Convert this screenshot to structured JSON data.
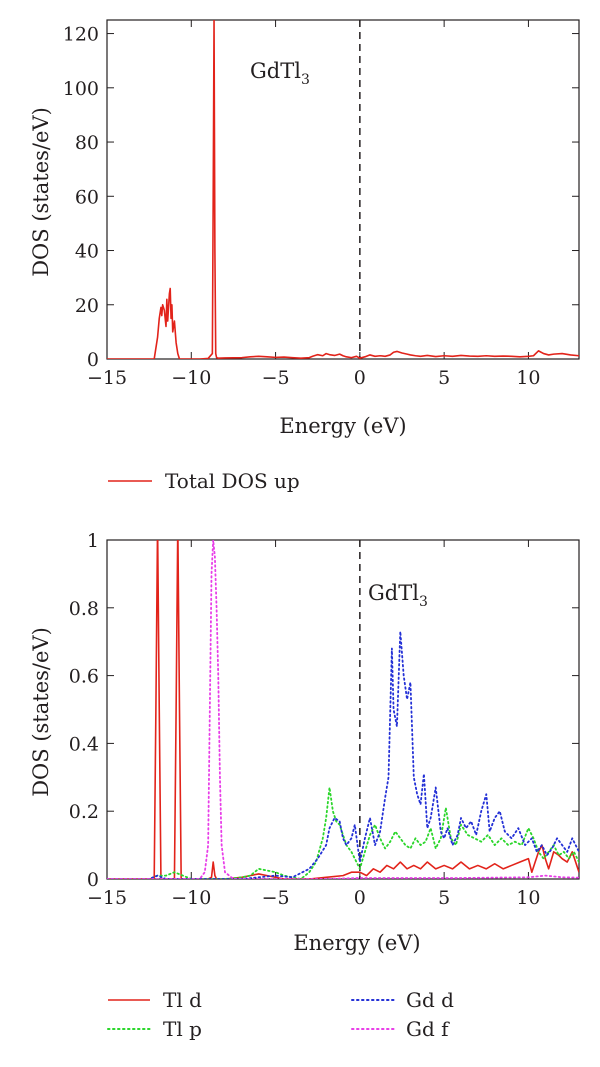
{
  "chart_data": [
    {
      "type": "line",
      "annotation": {
        "base": "GdTl",
        "sub": "3"
      },
      "xlabel": "Energy (eV)",
      "ylabel": "DOS (states/eV)",
      "xlim": [
        -15,
        13
      ],
      "ylim": [
        0,
        125
      ],
      "xticks": [
        -15,
        -10,
        -5,
        0,
        5,
        10
      ],
      "yticks": [
        0,
        20,
        40,
        60,
        80,
        100,
        120
      ],
      "fermi_level": 0,
      "legend_position": "below",
      "series": [
        {
          "name": "Total DOS up",
          "color": "#e2231a",
          "style": "solid",
          "x": [
            -15,
            -12.2,
            -12.0,
            -11.9,
            -11.8,
            -11.75,
            -11.7,
            -11.6,
            -11.5,
            -11.45,
            -11.4,
            -11.3,
            -11.25,
            -11.2,
            -11.15,
            -11.1,
            -11.0,
            -10.9,
            -10.8,
            -10.7,
            -10.5,
            -10.0,
            -9.5,
            -9.0,
            -8.75,
            -8.7,
            -8.65,
            -8.6,
            -8.55,
            -8.5,
            -8.4,
            -8.0,
            -7.0,
            -6.5,
            -6.0,
            -5.5,
            -5.0,
            -4.5,
            -4.0,
            -3.5,
            -3.0,
            -2.8,
            -2.5,
            -2.2,
            -2.0,
            -1.8,
            -1.5,
            -1.2,
            -1.0,
            -0.8,
            -0.5,
            -0.2,
            0.0,
            0.3,
            0.6,
            0.9,
            1.2,
            1.5,
            1.8,
            2.0,
            2.2,
            2.5,
            2.8,
            3.0,
            3.3,
            3.6,
            4.0,
            4.5,
            5.0,
            5.5,
            6.0,
            6.5,
            7.0,
            7.5,
            8.0,
            8.5,
            9.0,
            9.5,
            10.0,
            10.3,
            10.6,
            10.9,
            11.2,
            11.5,
            12.0,
            12.5,
            13.0
          ],
          "y": [
            0,
            0,
            8,
            15,
            19,
            16,
            20,
            18,
            12,
            22,
            14,
            24,
            26,
            15,
            20,
            10,
            14,
            6,
            2,
            0,
            0,
            0,
            0,
            0.2,
            2,
            60,
            125,
            40,
            2,
            0.5,
            0.3,
            0.4,
            0.5,
            0.8,
            1.0,
            0.8,
            0.6,
            0.7,
            0.5,
            0.3,
            0.5,
            1.0,
            1.6,
            1.2,
            2.0,
            1.6,
            1.3,
            1.8,
            1.2,
            0.8,
            0.5,
            1.0,
            0.3,
            0.8,
            1.5,
            1.0,
            1.2,
            1.0,
            1.5,
            2.5,
            2.8,
            2.2,
            1.8,
            1.5,
            1.2,
            1.0,
            1.3,
            0.9,
            1.2,
            1.0,
            1.3,
            1.1,
            1.0,
            1.2,
            1.0,
            1.1,
            1.0,
            0.8,
            1.0,
            1.2,
            3.0,
            2.0,
            1.5,
            1.8,
            2.0,
            1.5,
            1.2
          ]
        }
      ]
    },
    {
      "type": "line",
      "annotation": {
        "base": "GdTl",
        "sub": "3"
      },
      "xlabel": "Energy (eV)",
      "ylabel": "DOS (states/eV)",
      "xlim": [
        -15,
        13
      ],
      "ylim": [
        0,
        1
      ],
      "xticks": [
        -15,
        -10,
        -5,
        0,
        5,
        10
      ],
      "yticks": [
        0,
        0.2,
        0.4,
        0.6,
        0.8,
        1
      ],
      "fermi_level": 0,
      "legend_position": "below",
      "series": [
        {
          "name": "Tl d",
          "color": "#e2231a",
          "style": "solid",
          "x": [
            -15,
            -12.2,
            -12.1,
            -12.0,
            -11.9,
            -11.8,
            -11.0,
            -10.9,
            -10.8,
            -10.7,
            -10.6,
            -9.0,
            -8.8,
            -8.7,
            -8.6,
            -8.5,
            -8.0,
            -7.0,
            -6.5,
            -6.0,
            -5.5,
            -5.0,
            -4.5,
            -3.0,
            -2.0,
            -1.0,
            -0.5,
            0.0,
            0.4,
            0.8,
            1.2,
            1.6,
            2.0,
            2.4,
            2.8,
            3.2,
            3.6,
            4.0,
            4.5,
            5.0,
            5.5,
            6.0,
            6.5,
            7.0,
            7.5,
            8.0,
            8.5,
            9.0,
            9.5,
            10.0,
            10.2,
            10.4,
            10.6,
            10.8,
            11.0,
            11.2,
            11.5,
            11.8,
            12.0,
            12.3,
            12.6,
            13.0
          ],
          "y": [
            0,
            0,
            0.5,
            1.05,
            0.5,
            0,
            0,
            0.5,
            1.05,
            0.5,
            0,
            0,
            0.005,
            0.05,
            0.01,
            0,
            0,
            0.005,
            0.01,
            0.015,
            0.01,
            0.005,
            0,
            0,
            0.005,
            0.01,
            0.02,
            0.02,
            0.01,
            0.03,
            0.02,
            0.04,
            0.03,
            0.05,
            0.03,
            0.04,
            0.03,
            0.05,
            0.03,
            0.04,
            0.03,
            0.05,
            0.03,
            0.04,
            0.03,
            0.045,
            0.03,
            0.04,
            0.05,
            0.06,
            0.02,
            0.05,
            0.08,
            0.1,
            0.06,
            0.03,
            0.08,
            0.07,
            0.06,
            0.05,
            0.08,
            0.02
          ]
        },
        {
          "name": "Tl p",
          "color": "#2bd62b",
          "style": "dotted",
          "x": [
            -15,
            -12.5,
            -12.0,
            -11.5,
            -11.0,
            -10.0,
            -9.0,
            -8.0,
            -7.0,
            -6.5,
            -6.0,
            -5.5,
            -5.0,
            -4.5,
            -4.0,
            -3.5,
            -3.0,
            -2.6,
            -2.2,
            -2.0,
            -1.8,
            -1.6,
            -1.4,
            -1.2,
            -1.0,
            -0.8,
            -0.5,
            -0.2,
            0.0,
            0.3,
            0.6,
            0.9,
            1.2,
            1.5,
            1.8,
            2.1,
            2.4,
            2.7,
            3.0,
            3.3,
            3.6,
            3.9,
            4.2,
            4.5,
            4.8,
            5.1,
            5.4,
            5.7,
            6.0,
            6.4,
            6.8,
            7.2,
            7.6,
            8.0,
            8.4,
            8.8,
            9.2,
            9.6,
            10.0,
            10.3,
            10.6,
            10.9,
            11.2,
            11.5,
            11.8,
            12.1,
            12.4,
            12.7,
            13.0
          ],
          "y": [
            0,
            0,
            0.01,
            0.01,
            0.02,
            0,
            0,
            0,
            0.005,
            0.01,
            0.03,
            0.025,
            0.02,
            0.01,
            0.005,
            0,
            0.02,
            0.05,
            0.12,
            0.18,
            0.27,
            0.2,
            0.17,
            0.16,
            0.13,
            0.1,
            0.08,
            0.05,
            0.03,
            0.08,
            0.13,
            0.16,
            0.12,
            0.09,
            0.11,
            0.14,
            0.12,
            0.1,
            0.09,
            0.12,
            0.1,
            0.11,
            0.15,
            0.09,
            0.12,
            0.21,
            0.12,
            0.1,
            0.16,
            0.13,
            0.12,
            0.11,
            0.13,
            0.1,
            0.12,
            0.1,
            0.11,
            0.1,
            0.15,
            0.12,
            0.08,
            0.06,
            0.08,
            0.1,
            0.07,
            0.08,
            0.06,
            0.08,
            0.05
          ]
        },
        {
          "name": "Gd d",
          "color": "#2330d6",
          "style": "dotted",
          "x": [
            -15,
            -12.5,
            -12.0,
            -11.5,
            -11.0,
            -10.0,
            -9.0,
            -8.0,
            -7.0,
            -6.0,
            -5.0,
            -4.0,
            -3.0,
            -2.5,
            -2.0,
            -1.8,
            -1.5,
            -1.2,
            -1.0,
            -0.8,
            -0.5,
            -0.3,
            0.0,
            0.3,
            0.6,
            0.9,
            1.2,
            1.5,
            1.7,
            1.9,
            2.0,
            2.2,
            2.4,
            2.6,
            2.8,
            3.0,
            3.2,
            3.4,
            3.6,
            3.8,
            4.0,
            4.2,
            4.5,
            4.8,
            5.0,
            5.2,
            5.5,
            5.8,
            6.0,
            6.3,
            6.6,
            6.9,
            7.2,
            7.5,
            7.7,
            8.0,
            8.3,
            8.6,
            9.0,
            9.4,
            9.8,
            10.2,
            10.5,
            10.8,
            11.1,
            11.4,
            11.7,
            12.0,
            12.3,
            12.6,
            13.0
          ],
          "y": [
            0,
            0,
            0.01,
            0,
            0,
            0,
            0,
            0,
            0,
            0.005,
            0.01,
            0.005,
            0.03,
            0.06,
            0.1,
            0.15,
            0.18,
            0.17,
            0.12,
            0.1,
            0.12,
            0.16,
            0.05,
            0.12,
            0.18,
            0.1,
            0.14,
            0.24,
            0.3,
            0.68,
            0.5,
            0.45,
            0.73,
            0.6,
            0.53,
            0.58,
            0.3,
            0.25,
            0.22,
            0.31,
            0.15,
            0.18,
            0.27,
            0.14,
            0.12,
            0.15,
            0.1,
            0.13,
            0.18,
            0.15,
            0.17,
            0.13,
            0.2,
            0.25,
            0.14,
            0.18,
            0.2,
            0.14,
            0.12,
            0.15,
            0.1,
            0.12,
            0.08,
            0.1,
            0.07,
            0.09,
            0.12,
            0.1,
            0.08,
            0.12,
            0.08
          ]
        },
        {
          "name": "Gd f",
          "color": "#e83ee8",
          "style": "dotted",
          "x": [
            -15,
            -10.0,
            -9.5,
            -9.2,
            -9.0,
            -8.9,
            -8.8,
            -8.7,
            -8.6,
            -8.5,
            -8.4,
            -8.3,
            -8.2,
            -8.0,
            -7.5,
            -6.0,
            -4.0,
            -2.0,
            0.0,
            2.0,
            4.0,
            6.0,
            8.0,
            10.0,
            11.0,
            12.0,
            13.0
          ],
          "y": [
            0,
            0,
            0,
            0.02,
            0.1,
            0.5,
            0.9,
            1.0,
            0.95,
            0.8,
            0.6,
            0.3,
            0.1,
            0.02,
            0,
            0,
            0,
            0,
            0.003,
            0.003,
            0.003,
            0.003,
            0.004,
            0.005,
            0.01,
            0.005,
            0.004
          ]
        }
      ]
    }
  ]
}
